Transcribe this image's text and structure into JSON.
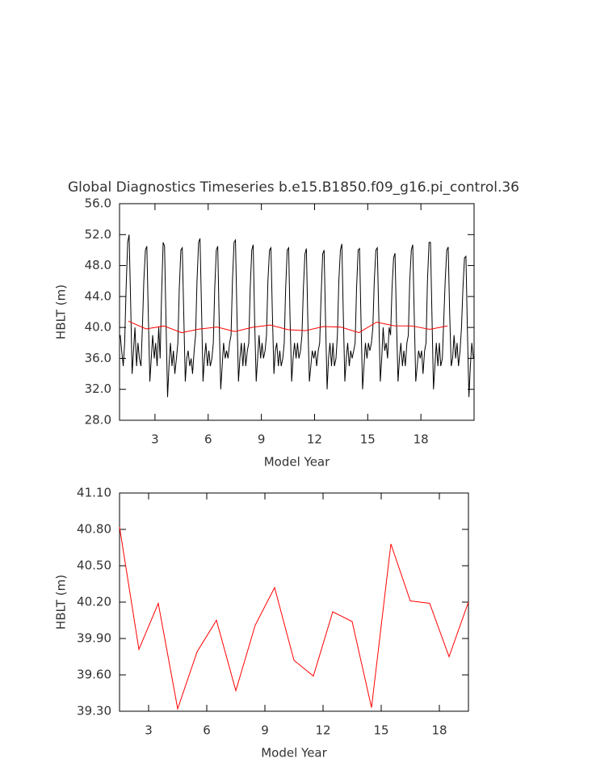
{
  "chart_data": [
    {
      "type": "line",
      "title": "Global Diagnostics Timeseries b.e15.B1850.f09_g16.pi_control.36",
      "xlabel": "Model Year",
      "ylabel": "HBLT (m)",
      "xlim": [
        1,
        21
      ],
      "ylim": [
        28,
        56
      ],
      "xticks": [
        3,
        6,
        9,
        12,
        15,
        18
      ],
      "yticks": [
        {
          "value": 28,
          "label": "28.0"
        },
        {
          "value": 32,
          "label": "32.0"
        },
        {
          "value": 36,
          "label": "36.0"
        },
        {
          "value": 40,
          "label": "40.0"
        },
        {
          "value": 44,
          "label": "44.0"
        },
        {
          "value": 48,
          "label": "48.0"
        },
        {
          "value": 52,
          "label": "52.0"
        },
        {
          "value": 56,
          "label": "56.0"
        }
      ],
      "series": [
        {
          "color": "#000000",
          "x": [
            1.04,
            1.12,
            1.21,
            1.29,
            1.37,
            1.46,
            1.54,
            1.62,
            1.71,
            1.79,
            1.87,
            1.96,
            2.04,
            2.12,
            2.21,
            2.29,
            2.37,
            2.46,
            2.54,
            2.62,
            2.71,
            2.79,
            2.87,
            2.96,
            3.04,
            3.12,
            3.21,
            3.29,
            3.37,
            3.46,
            3.54,
            3.62,
            3.71,
            3.79,
            3.87,
            3.96,
            4.04,
            4.12,
            4.21,
            4.29,
            4.37,
            4.46,
            4.54,
            4.62,
            4.71,
            4.79,
            4.87,
            4.96,
            5.04,
            5.12,
            5.21,
            5.29,
            5.37,
            5.46,
            5.54,
            5.62,
            5.71,
            5.79,
            5.87,
            5.96,
            6.04,
            6.12,
            6.21,
            6.29,
            6.37,
            6.46,
            6.54,
            6.62,
            6.71,
            6.79,
            6.87,
            6.96,
            7.04,
            7.12,
            7.21,
            7.29,
            7.37,
            7.46,
            7.54,
            7.62,
            7.71,
            7.79,
            7.87,
            7.96,
            8.04,
            8.12,
            8.21,
            8.29,
            8.37,
            8.46,
            8.54,
            8.62,
            8.71,
            8.79,
            8.87,
            8.96,
            9.04,
            9.12,
            9.21,
            9.29,
            9.37,
            9.46,
            9.54,
            9.62,
            9.71,
            9.79,
            9.87,
            9.96,
            10.04,
            10.12,
            10.21,
            10.29,
            10.37,
            10.46,
            10.54,
            10.62,
            10.71,
            10.79,
            10.87,
            10.96,
            11.04,
            11.12,
            11.21,
            11.29,
            11.37,
            11.46,
            11.54,
            11.62,
            11.71,
            11.79,
            11.87,
            11.96,
            12.04,
            12.12,
            12.21,
            12.29,
            12.37,
            12.46,
            12.54,
            12.62,
            12.71,
            12.79,
            12.87,
            12.96,
            13.04,
            13.12,
            13.21,
            13.29,
            13.37,
            13.46,
            13.54,
            13.62,
            13.71,
            13.79,
            13.87,
            13.96,
            14.04,
            14.12,
            14.21,
            14.29,
            14.37,
            14.46,
            14.54,
            14.62,
            14.71,
            14.79,
            14.87,
            14.96,
            15.04,
            15.12,
            15.21,
            15.29,
            15.37,
            15.46,
            15.54,
            15.62,
            15.71,
            15.79,
            15.87,
            15.96,
            16.04,
            16.12,
            16.21,
            16.29,
            16.37,
            16.46,
            16.54,
            16.62,
            16.71,
            16.79,
            16.87,
            16.96,
            17.04,
            17.12,
            17.21,
            17.29,
            17.37,
            17.46,
            17.54,
            17.62,
            17.71,
            17.79,
            17.87,
            17.96,
            18.04,
            18.12,
            18.21,
            18.29,
            18.37,
            18.46,
            18.54,
            18.62,
            18.71,
            18.79,
            18.87,
            18.96,
            19.04,
            19.12,
            19.21,
            19.29,
            19.37,
            19.46,
            19.54,
            19.62,
            19.71,
            19.79,
            19.87,
            19.96,
            20.04,
            20.12,
            20.21,
            20.29,
            20.37,
            20.46,
            20.54,
            20.62,
            20.71,
            20.79,
            20.87,
            20.96
          ],
          "values": [
            39,
            37,
            35,
            38,
            45,
            51,
            52,
            44,
            34,
            37,
            40,
            35,
            38,
            36,
            35,
            40,
            46,
            50,
            50.5,
            42,
            33,
            36,
            39,
            36,
            38,
            35,
            40,
            36,
            44,
            51,
            50.5,
            41,
            31,
            35,
            38,
            35,
            37,
            34,
            36,
            38,
            45,
            50,
            50.3,
            42,
            33,
            36,
            37,
            35,
            36,
            34,
            37,
            39,
            46,
            51,
            51.5,
            43,
            33,
            36,
            38,
            35,
            37,
            35,
            36,
            38,
            45,
            50,
            50.5,
            41,
            32,
            35,
            38,
            36,
            37,
            36,
            38,
            39,
            46,
            51,
            51.3,
            42,
            33,
            36,
            38,
            35,
            38,
            35,
            37,
            38,
            45,
            50,
            50.7,
            41,
            33,
            36,
            39,
            36,
            38,
            36,
            37,
            39,
            46,
            50,
            50.3,
            42,
            34,
            37,
            38,
            35,
            37,
            35,
            36,
            38,
            45,
            50,
            50.3,
            41,
            33,
            36,
            38,
            36,
            38,
            36,
            37,
            39,
            45,
            49.5,
            50.2,
            41,
            33,
            35,
            37,
            36,
            37,
            35,
            37,
            38,
            44,
            49.5,
            50,
            41,
            32,
            36,
            38,
            35,
            38,
            35,
            36,
            39,
            46,
            50,
            50.8,
            42,
            33,
            36,
            38,
            35,
            37,
            36,
            37,
            38,
            45,
            50,
            50.2,
            41,
            32,
            35,
            38,
            36,
            38,
            37,
            38,
            40,
            46,
            50,
            50.3,
            42,
            33,
            36,
            40,
            37,
            38,
            36,
            40,
            39,
            45,
            49,
            49.6,
            41,
            33,
            36,
            38,
            35,
            37,
            35,
            38,
            39,
            46,
            50,
            50.7,
            42,
            33,
            35,
            37,
            36,
            37,
            34,
            37,
            38,
            46,
            51,
            51,
            42,
            32,
            35,
            38,
            35,
            38,
            35,
            36,
            41,
            46,
            50,
            50.4,
            42,
            35,
            36,
            39,
            36,
            38,
            35,
            37,
            40,
            45,
            49,
            49.2,
            40,
            31,
            35,
            38,
            36
          ]
        },
        {
          "color": "#ff0000",
          "x": [
            1.5,
            2.5,
            3.5,
            4.5,
            5.5,
            6.5,
            7.5,
            8.5,
            9.5,
            10.5,
            11.5,
            12.5,
            13.5,
            14.5,
            15.5,
            16.5,
            17.5,
            18.5,
            19.5
          ],
          "values": [
            40.82,
            39.81,
            40.19,
            39.32,
            39.79,
            40.05,
            39.47,
            40.01,
            40.32,
            39.72,
            39.59,
            40.12,
            40.04,
            39.33,
            40.68,
            40.21,
            40.19,
            39.75,
            40.2
          ]
        }
      ]
    },
    {
      "type": "line",
      "xlabel": "Model Year",
      "ylabel": "HBLT (m)",
      "xlim": [
        1.5,
        19.5
      ],
      "ylim": [
        39.3,
        41.1
      ],
      "xticks": [
        3,
        6,
        9,
        12,
        15,
        18
      ],
      "yticks": [
        {
          "value": 39.3,
          "label": "39.30"
        },
        {
          "value": 39.6,
          "label": "39.60"
        },
        {
          "value": 39.9,
          "label": "39.90"
        },
        {
          "value": 40.2,
          "label": "40.20"
        },
        {
          "value": 40.5,
          "label": "40.50"
        },
        {
          "value": 40.8,
          "label": "40.80"
        },
        {
          "value": 41.1,
          "label": "41.10"
        }
      ],
      "series": [
        {
          "color": "#ff0000",
          "x": [
            1.5,
            2.5,
            3.5,
            4.5,
            5.5,
            6.5,
            7.5,
            8.5,
            9.5,
            10.5,
            11.5,
            12.5,
            13.5,
            14.5,
            15.5,
            16.5,
            17.5,
            18.5,
            19.5
          ],
          "values": [
            40.82,
            39.81,
            40.19,
            39.32,
            39.79,
            40.05,
            39.47,
            40.01,
            40.32,
            39.72,
            39.59,
            40.12,
            40.04,
            39.33,
            40.68,
            40.21,
            40.19,
            39.75,
            40.2
          ]
        }
      ]
    }
  ]
}
